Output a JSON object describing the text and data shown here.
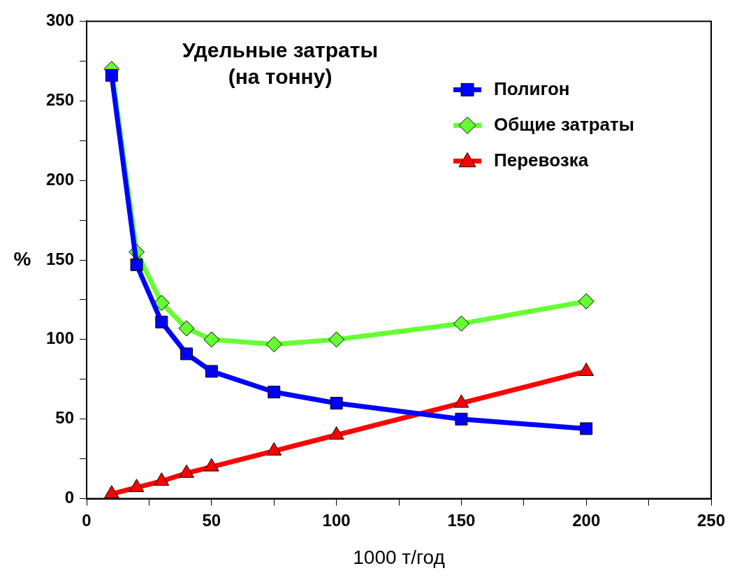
{
  "chart_data": {
    "type": "line",
    "title": "Удельные затраты\n(на тонну)",
    "xlabel": "1000 т/год",
    "ylabel": "%",
    "x": [
      10,
      20,
      30,
      40,
      50,
      75,
      100,
      150,
      200
    ],
    "series": [
      {
        "name": "Полигон",
        "color": "#0000ff",
        "marker": "square",
        "values": [
          266,
          147,
          111,
          91,
          80,
          67,
          60,
          50,
          44
        ]
      },
      {
        "name": "Общие затраты",
        "color": "#66ff33",
        "marker": "diamond",
        "values": [
          270,
          155,
          123,
          107,
          100,
          97,
          100,
          110,
          124
        ]
      },
      {
        "name": "Перевозка",
        "color": "#ff0000",
        "marker": "triangle",
        "values": [
          3,
          7,
          11,
          16,
          20,
          30,
          40,
          60,
          80
        ]
      }
    ],
    "xlim": [
      0,
      250
    ],
    "xticks": [
      0,
      {
        "value": 25,
        "label": null
      },
      50,
      {
        "value": 75,
        "label": null
      },
      100,
      {
        "value": 125,
        "label": null
      },
      150,
      {
        "value": 175,
        "label": null
      },
      200,
      {
        "value": 225,
        "label": null
      },
      250
    ],
    "ylim": [
      0,
      300
    ],
    "yticks": [
      0,
      {
        "value": 25,
        "label": null
      },
      50,
      {
        "value": 75,
        "label": null
      },
      100,
      {
        "value": 125,
        "label": null
      },
      150,
      {
        "value": 175,
        "label": null
      },
      200,
      {
        "value": 225,
        "label": null
      },
      250,
      {
        "value": 275,
        "label": null
      },
      300
    ],
    "grid": false,
    "legend": "top right",
    "line_style": "solid"
  }
}
